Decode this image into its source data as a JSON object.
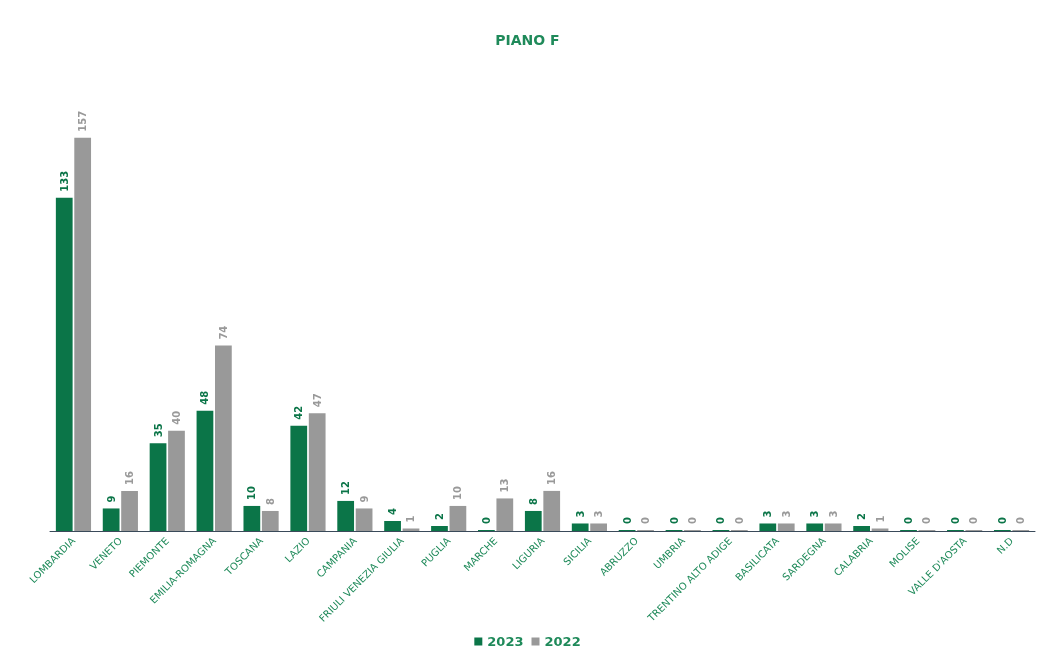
{
  "chart_data": {
    "type": "bar",
    "title": "PIANO F",
    "categories": [
      "LOMBARDIA",
      "VENETO",
      "PIEMONTE",
      "EMILIA-ROMAGNA",
      "TOSCANA",
      "LAZIO",
      "CAMPANIA",
      "FRIULI VENEZIA GIULIA",
      "PUGLIA",
      "MARCHE",
      "LIGURIA",
      "SICILIA",
      "ABRUZZO",
      "UMBRIA",
      "TRENTINO ALTO ADIGE",
      "BASILICATA",
      "SARDEGNA",
      "CALABRIA",
      "MOLISE",
      "VALLE D'AOSTA",
      "N.D"
    ],
    "series": [
      {
        "name": "2023",
        "color": "#0b7548",
        "values": [
          133,
          9,
          35,
          48,
          10,
          42,
          12,
          4,
          2,
          0,
          8,
          3,
          0,
          0,
          0,
          3,
          3,
          2,
          0,
          0,
          0
        ]
      },
      {
        "name": "2022",
        "color": "#999999",
        "values": [
          157,
          16,
          40,
          74,
          8,
          47,
          9,
          1,
          10,
          13,
          16,
          3,
          0,
          0,
          0,
          3,
          3,
          1,
          0,
          0,
          0
        ]
      }
    ],
    "data_labels": true,
    "legend": "bottom"
  }
}
